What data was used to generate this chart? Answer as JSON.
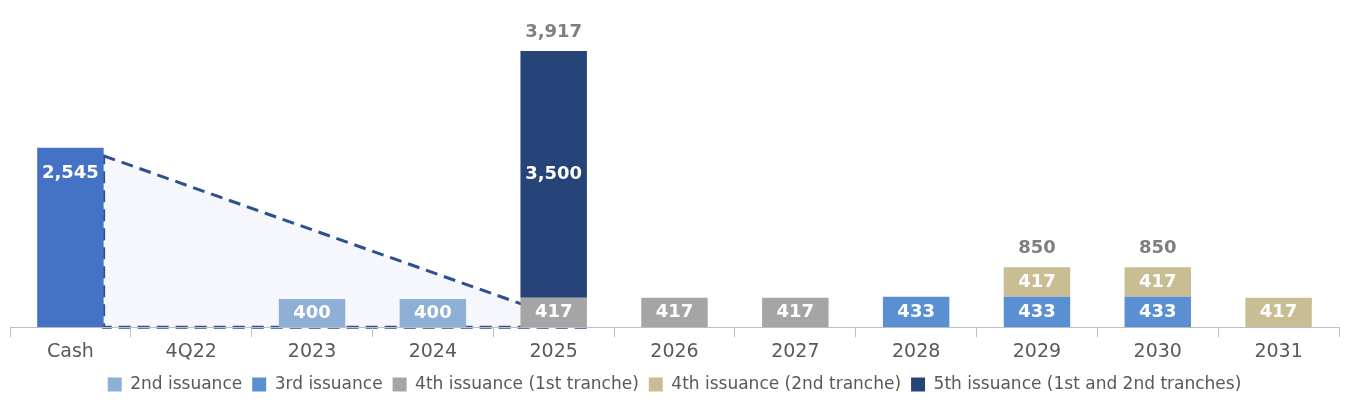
{
  "chart_data": {
    "type": "bar",
    "stacked": true,
    "legend": "bottom",
    "grid": false,
    "categories": [
      "Cash",
      "4Q22",
      "2023",
      "2024",
      "2025",
      "2026",
      "2027",
      "2028",
      "2029",
      "2030",
      "2031"
    ],
    "series": [
      {
        "color": "#4472c4",
        "values": [
          2545,
          null,
          null,
          null,
          null,
          null,
          null,
          null,
          null,
          null,
          null
        ],
        "value_labels": [
          "2,545",
          null,
          null,
          null,
          null,
          null,
          null,
          null,
          null,
          null,
          null
        ]
      },
      {
        "name": "2nd issuance",
        "color": "#8eafd6",
        "values": [
          null,
          null,
          400,
          400,
          null,
          null,
          null,
          null,
          null,
          null,
          null
        ],
        "value_labels": [
          null,
          null,
          "400",
          "400",
          null,
          null,
          null,
          null,
          null,
          null,
          null
        ]
      },
      {
        "name": "3rd issuance",
        "color": "#5b8fd3",
        "values": [
          null,
          null,
          null,
          null,
          null,
          null,
          null,
          433,
          433,
          433,
          null
        ],
        "value_labels": [
          null,
          null,
          null,
          null,
          null,
          null,
          null,
          "433",
          "433",
          "433",
          null
        ]
      },
      {
        "name": "4th issuance (1st tranche)",
        "color": "#a5a5a5",
        "values": [
          null,
          null,
          null,
          null,
          417,
          417,
          417,
          null,
          null,
          null,
          null
        ],
        "value_labels": [
          null,
          null,
          null,
          null,
          "417",
          "417",
          "417",
          null,
          null,
          null,
          null
        ]
      },
      {
        "name": "4th issuance (2nd tranche)",
        "color": "#c9bd93",
        "values": [
          null,
          null,
          null,
          null,
          null,
          null,
          null,
          null,
          417,
          417,
          417
        ],
        "value_labels": [
          null,
          null,
          null,
          null,
          null,
          null,
          null,
          null,
          "417",
          "417",
          "417"
        ]
      },
      {
        "name": "5th issuance (1st and 2nd tranches)",
        "color": "#264478",
        "values": [
          null,
          null,
          null,
          null,
          3500,
          null,
          null,
          null,
          null,
          null,
          null
        ],
        "value_labels": [
          null,
          null,
          null,
          null,
          "3,500",
          null,
          null,
          null,
          null,
          null,
          null
        ]
      }
    ],
    "totals": [
      null,
      null,
      null,
      null,
      "3,917",
      null,
      null,
      null,
      "850",
      "850",
      null
    ]
  }
}
